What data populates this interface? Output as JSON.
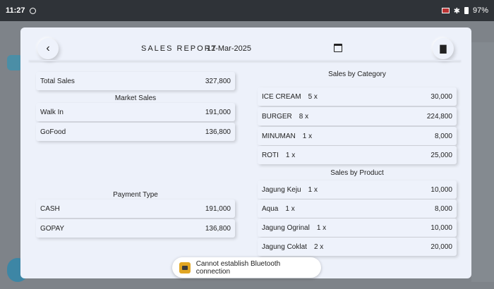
{
  "status_bar": {
    "time": "11:27",
    "battery": "97%"
  },
  "report": {
    "title": "SALES REPORT",
    "date": "12-Mar-2025",
    "total_sales_label": "Total Sales",
    "total_sales_value": "327,800"
  },
  "market_sales": {
    "title": "Market Sales",
    "items": [
      {
        "label": "Walk In",
        "value": "191,000"
      },
      {
        "label": "GoFood",
        "value": "136,800"
      }
    ]
  },
  "payment_type": {
    "title": "Payment Type",
    "items": [
      {
        "label": "CASH",
        "value": "191,000"
      },
      {
        "label": "GOPAY",
        "value": "136,800"
      }
    ]
  },
  "sales_by_category": {
    "title": "Sales by Category",
    "items": [
      {
        "label": "ICE CREAM",
        "qty": "5 x",
        "value": "30,000"
      },
      {
        "label": "BURGER",
        "qty": "8 x",
        "value": "224,800"
      },
      {
        "label": "MINUMAN",
        "qty": "1 x",
        "value": "8,000"
      },
      {
        "label": "ROTI",
        "qty": "1 x",
        "value": "25,000"
      }
    ]
  },
  "sales_by_product": {
    "title": "Sales by Product",
    "items": [
      {
        "label": "Jagung Keju",
        "qty": "1 x",
        "value": "10,000"
      },
      {
        "label": "Aqua",
        "qty": "1 x",
        "value": "8,000"
      },
      {
        "label": "Jagung Ogrinal",
        "qty": "1 x",
        "value": "10,000"
      },
      {
        "label": "Jagung Coklat",
        "qty": "2 x",
        "value": "20,000"
      }
    ]
  },
  "toast": {
    "message": "Cannot establish Bluetooth connection"
  },
  "icons": {
    "back": "chevron-left-icon",
    "calendar": "calendar-icon",
    "print": "printer-icon"
  }
}
